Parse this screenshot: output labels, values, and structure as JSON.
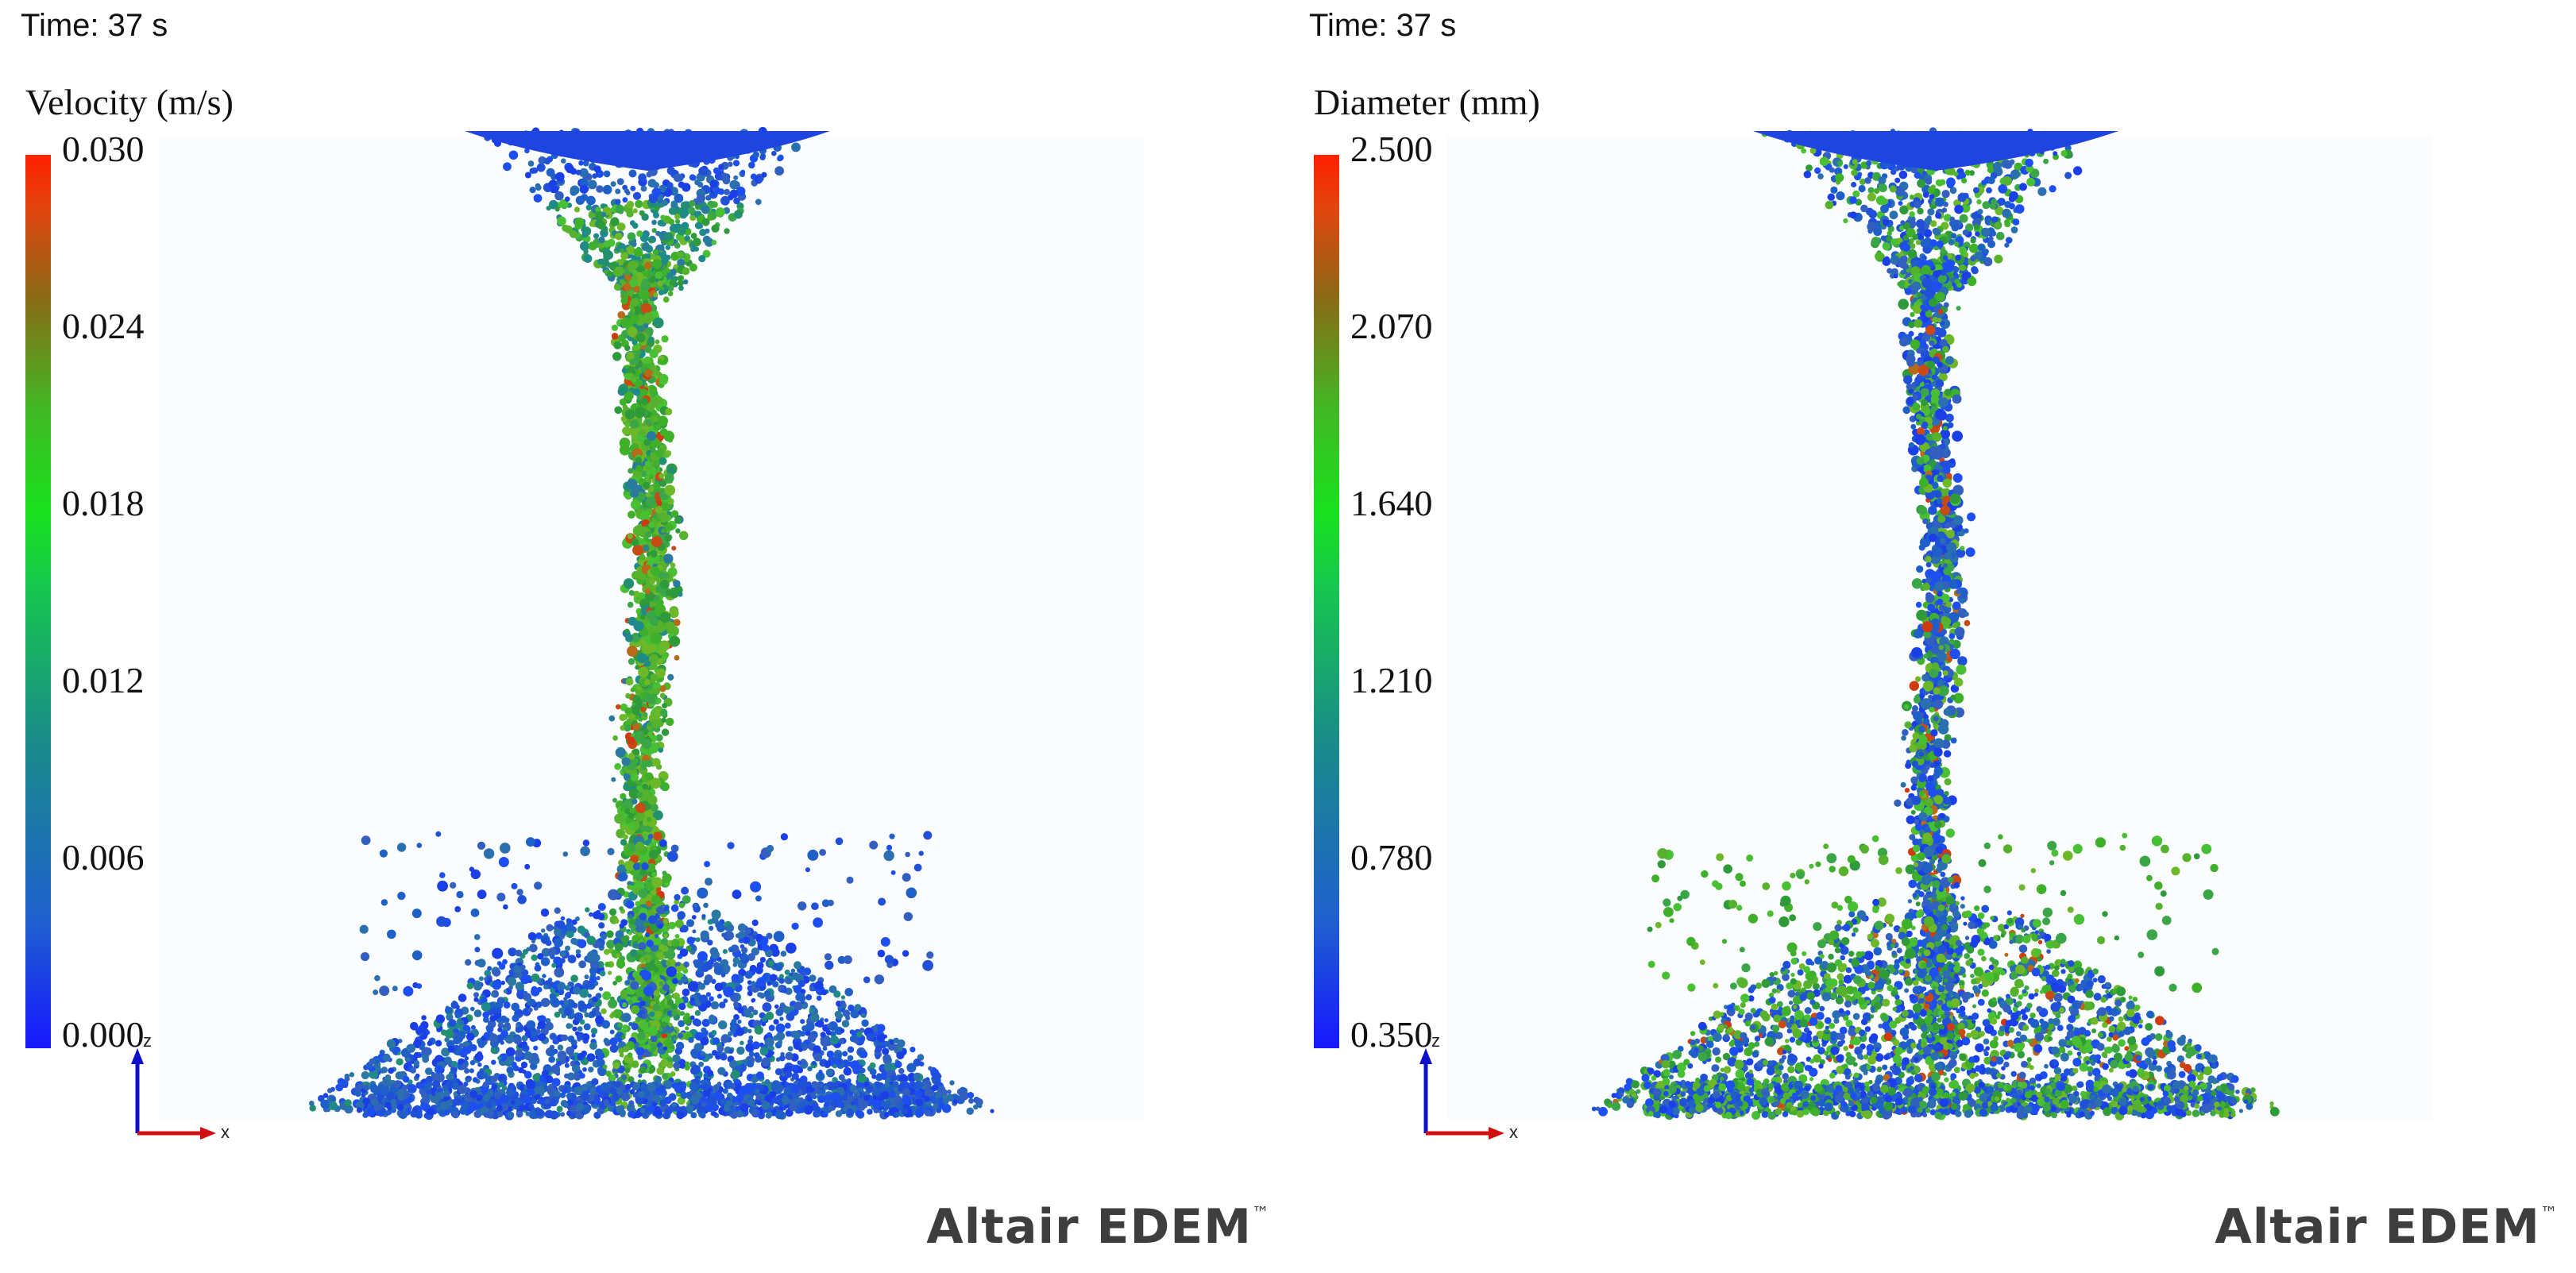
{
  "panels": [
    {
      "time_label": "Time: 37 s",
      "colorbar_title": "Velocity (m/s)",
      "ticks": [
        "0.030",
        "0.024",
        "0.018",
        "0.012",
        "0.006",
        "0.000"
      ],
      "brand": "Altair EDEM",
      "trademark": "™",
      "axis_x": "x",
      "axis_z": "z"
    },
    {
      "time_label": "Time: 37 s",
      "colorbar_title": "Diameter (mm)",
      "ticks": [
        "2.500",
        "2.070",
        "1.640",
        "1.210",
        "0.780",
        "0.350"
      ],
      "brand": "Altair EDEM",
      "trademark": "™",
      "axis_x": "x",
      "axis_z": "z"
    }
  ],
  "colors": {
    "scale_low": "#1717ff",
    "scale_mid": "#19e21e",
    "scale_high": "#ff2000",
    "axis_x": "#d01010",
    "axis_z": "#1010c8",
    "brand_text": "#3e3e3e"
  }
}
